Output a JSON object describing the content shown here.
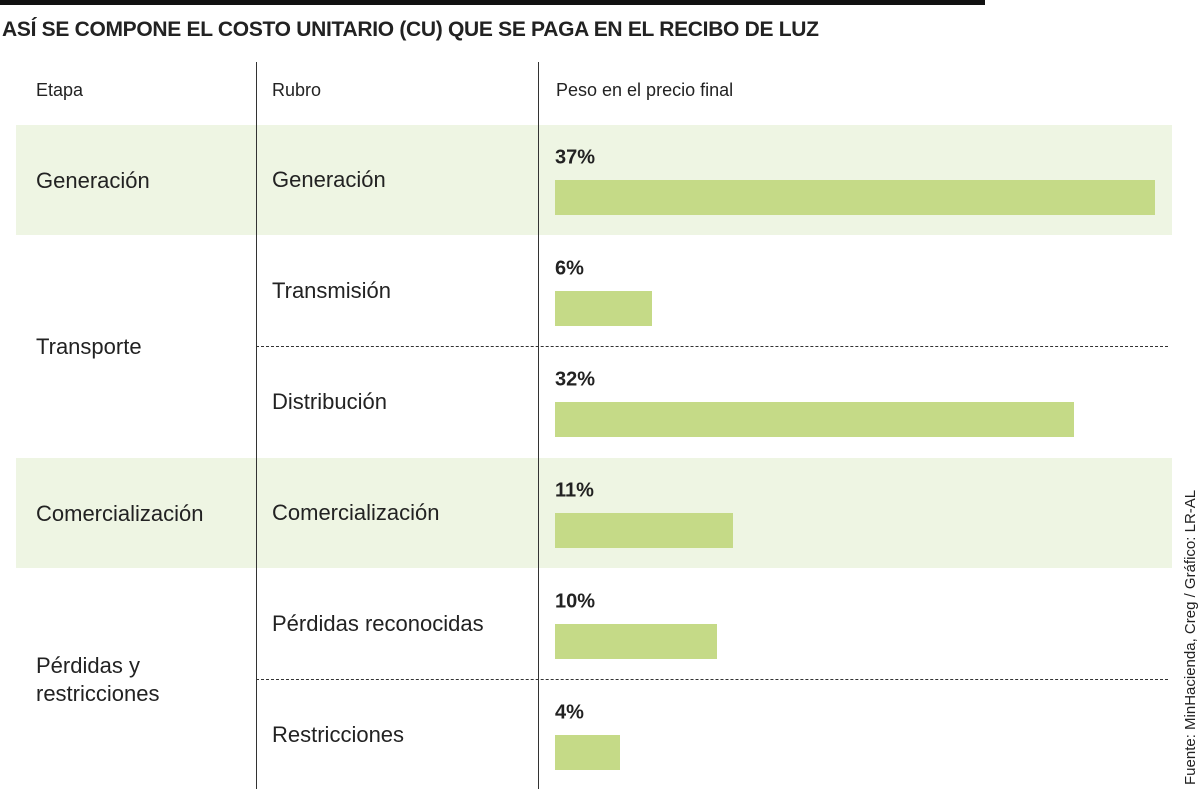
{
  "chart_data": {
    "type": "bar",
    "title": "ASÍ SE COMPONE EL COSTO UNITARIO (CU) QUE SE PAGA EN EL RECIBO DE LUZ",
    "columns": [
      "Etapa",
      "Rubro",
      "Peso en el precio final"
    ],
    "color": "#c5da87",
    "band_color": "#eef5e3",
    "groups": [
      {
        "name": "Generación",
        "categories": [
          "Generación"
        ],
        "values": [
          37
        ],
        "value_labels": [
          "37%"
        ]
      },
      {
        "name": "Transporte",
        "categories": [
          "Transmisión",
          "Distribución"
        ],
        "values": [
          6,
          32
        ],
        "value_labels": [
          "6%",
          "32%"
        ]
      },
      {
        "name": "Comercialización",
        "categories": [
          "Comercialización"
        ],
        "values": [
          11
        ],
        "value_labels": [
          "11%"
        ]
      },
      {
        "name": "Pérdidas y restricciones",
        "categories": [
          "Pérdidas reconocidas",
          "Restricciones"
        ],
        "values": [
          10,
          4
        ],
        "value_labels": [
          "10%",
          "4%"
        ]
      }
    ],
    "source": "Fuente: MinHacienda, Creg / Gráfico: LR-AL"
  }
}
